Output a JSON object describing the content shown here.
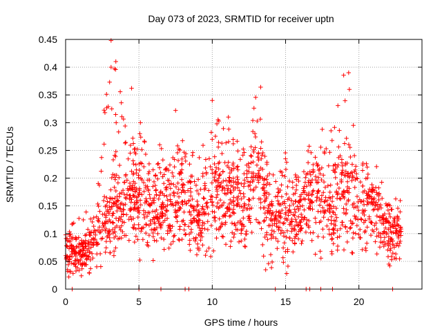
{
  "chart_data": {
    "type": "scatter",
    "title": "Day 073 of 2023, SRMTID for receiver uptn",
    "xlabel": "GPS time / hours",
    "ylabel": "SRMTID / TECUs",
    "xlim": [
      0,
      24.3
    ],
    "ylim": [
      0,
      0.45
    ],
    "xticks": [
      0,
      5,
      10,
      15,
      20
    ],
    "xtick_labels": [
      "0",
      "5",
      "10",
      "15",
      "20"
    ],
    "yticks": [
      0,
      0.05,
      0.1,
      0.15,
      0.2,
      0.25,
      0.3,
      0.35,
      0.4,
      0.45
    ],
    "ytick_labels": [
      "0",
      "0.05",
      "0.1",
      "0.15",
      "0.2",
      "0.25",
      "0.3",
      "0.35",
      "0.4",
      "0.45"
    ],
    "grid": true,
    "marker": "+",
    "colors": {
      "series": "#ff0000",
      "grid": "#a0a0a0",
      "axis": "#000000"
    },
    "arc_envelope": {
      "description": "approximate per-hour median and upper-spike value of SRMTID (TECU) read from the scatter",
      "hours": [
        0,
        1,
        2,
        3,
        4,
        5,
        6,
        7,
        8,
        9,
        10,
        11,
        12,
        13,
        14,
        15,
        16,
        17,
        18,
        19,
        20,
        21,
        22,
        23
      ],
      "median": [
        0.07,
        0.06,
        0.08,
        0.13,
        0.16,
        0.16,
        0.14,
        0.15,
        0.17,
        0.12,
        0.18,
        0.17,
        0.14,
        0.2,
        0.13,
        0.13,
        0.13,
        0.18,
        0.14,
        0.17,
        0.15,
        0.15,
        0.1,
        0.1
      ],
      "peak": [
        0.1,
        0.14,
        0.15,
        0.45,
        0.36,
        0.3,
        0.23,
        0.32,
        0.25,
        0.26,
        0.34,
        0.31,
        0.27,
        0.36,
        0.2,
        0.25,
        0.23,
        0.29,
        0.29,
        0.39,
        0.24,
        0.24,
        0.15,
        0.17
      ]
    },
    "zero_points_x": [
      0.45,
      5.0,
      6.5,
      8.15,
      8.4,
      14.3,
      16.4,
      16.65,
      17.4,
      18.2,
      22.3
    ],
    "point_samples": [
      [
        3.1,
        0.448
      ],
      [
        3.1,
        0.4
      ],
      [
        3.0,
        0.373
      ],
      [
        4.5,
        0.362
      ],
      [
        19.3,
        0.39
      ],
      [
        19.35,
        0.36
      ],
      [
        13.3,
        0.364
      ],
      [
        10.0,
        0.34
      ],
      [
        7.5,
        0.322
      ],
      [
        5.1,
        0.3
      ],
      [
        11.1,
        0.31
      ],
      [
        17.5,
        0.288
      ]
    ]
  }
}
